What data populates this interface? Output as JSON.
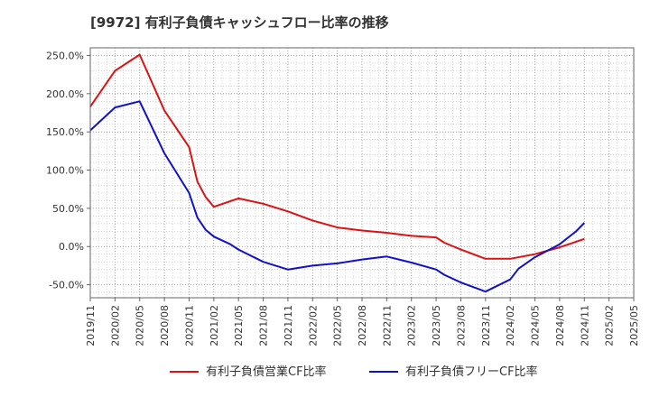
{
  "chart_data": {
    "type": "line",
    "title": "[9972]  有利子負債キャッシュフロー比率の推移",
    "xlabel": "",
    "ylabel": "",
    "ylim": [
      -67,
      260
    ],
    "yticks": [
      -50,
      0,
      50,
      100,
      150,
      200,
      250
    ],
    "ytick_labels": [
      "-50.0%",
      "0.0%",
      "50.0%",
      "100.0%",
      "150.0%",
      "200.0%",
      "250.0%"
    ],
    "xticks": [
      "2019/11",
      "2020/02",
      "2020/05",
      "2020/08",
      "2020/11",
      "2021/02",
      "2021/05",
      "2021/08",
      "2021/11",
      "2022/02",
      "2022/05",
      "2022/08",
      "2022/11",
      "2023/02",
      "2023/05",
      "2023/08",
      "2023/11",
      "2024/02",
      "2024/05",
      "2024/08",
      "2024/11",
      "2025/02",
      "2025/05"
    ],
    "xlim": [
      "2019/11",
      "2025/05"
    ],
    "grid": true,
    "legend_position": "bottom",
    "colors": {
      "series1": "#dd1111",
      "series2": "#1111cc"
    },
    "series": [
      {
        "name": "有利子負債営業CF比率",
        "color": "#dd1111",
        "x": [
          "2019/11",
          "2020/02",
          "2020/05",
          "2020/08",
          "2020/11",
          "2020/12",
          "2021/01",
          "2021/02",
          "2021/05",
          "2021/08",
          "2021/11",
          "2022/02",
          "2022/05",
          "2022/08",
          "2022/11",
          "2023/02",
          "2023/05",
          "2023/06",
          "2023/08",
          "2023/11",
          "2024/02",
          "2024/05",
          "2024/08",
          "2024/11"
        ],
        "values": [
          183,
          230,
          251,
          178,
          130,
          85,
          65,
          52,
          63,
          56,
          46,
          34,
          25,
          21,
          18,
          14,
          12,
          5,
          -4,
          -16,
          -16,
          -10,
          -1,
          10
        ]
      },
      {
        "name": "有利子負債フリーCF比率",
        "color": "#1111cc",
        "x": [
          "2019/11",
          "2020/02",
          "2020/05",
          "2020/08",
          "2020/11",
          "2020/12",
          "2021/01",
          "2021/02",
          "2021/04",
          "2021/05",
          "2021/08",
          "2021/11",
          "2022/02",
          "2022/05",
          "2022/08",
          "2022/11",
          "2023/02",
          "2023/05",
          "2023/06",
          "2023/08",
          "2023/11",
          "2024/02",
          "2024/03",
          "2024/05",
          "2024/08",
          "2024/10",
          "2024/11"
        ],
        "values": [
          152,
          182,
          190,
          122,
          70,
          38,
          22,
          13,
          3,
          -4,
          -20,
          -30,
          -25,
          -22,
          -17,
          -13,
          -21,
          -30,
          -37,
          -47,
          -59,
          -43,
          -29,
          -14,
          3,
          20,
          31
        ]
      }
    ]
  }
}
